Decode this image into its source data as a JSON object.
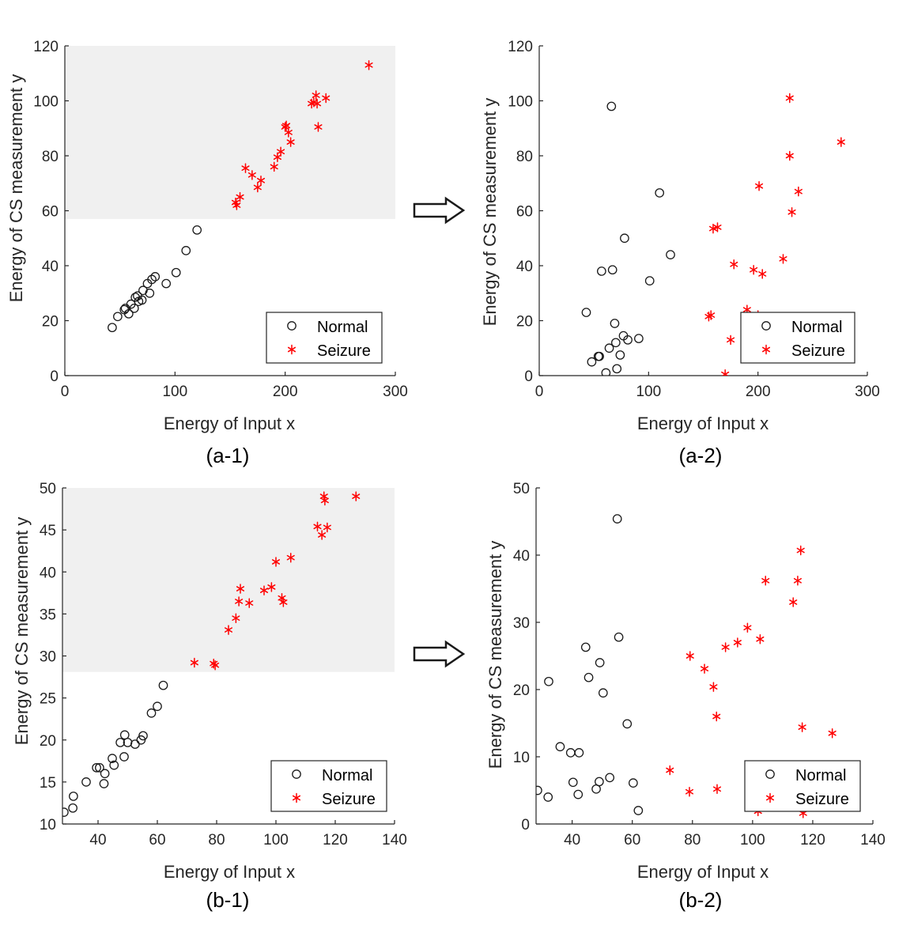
{
  "colors": {
    "normal": "#1a1a1a",
    "seizure": "#ff0000",
    "shade": "#f0f0f0",
    "axis": "#262626",
    "text": "#262626"
  },
  "legend_labels": {
    "normal": "Normal",
    "seizure": "Seizure"
  },
  "chart_data": [
    {
      "id": "a1",
      "type": "scatter",
      "panel_label": "(a-1)",
      "xlabel": "Energy of Input x",
      "ylabel": "Energy of CS measurement y",
      "xlim": [
        0,
        300
      ],
      "ylim": [
        0,
        120
      ],
      "xticks": [
        0,
        100,
        200,
        300
      ],
      "yticks": [
        0,
        20,
        40,
        60,
        80,
        100,
        120
      ],
      "shade": {
        "x": [
          0,
          300
        ],
        "y": [
          57,
          120
        ]
      },
      "legend_position": "bottom-right",
      "series": [
        {
          "name": "Normal",
          "marker": "circle",
          "points": [
            [
              43,
              17.5
            ],
            [
              48,
              21.5
            ],
            [
              54,
              24
            ],
            [
              55,
              24.5
            ],
            [
              58,
              22.5
            ],
            [
              60,
              26
            ],
            [
              63,
              24.5
            ],
            [
              64,
              28.5
            ],
            [
              66,
              29
            ],
            [
              67,
              27
            ],
            [
              70,
              27.5
            ],
            [
              71,
              31
            ],
            [
              75,
              33.5
            ],
            [
              77,
              30
            ],
            [
              79,
              35
            ],
            [
              82,
              36
            ],
            [
              92,
              33.5
            ],
            [
              101,
              37.5
            ],
            [
              110,
              45.5
            ],
            [
              120,
              53
            ]
          ]
        },
        {
          "name": "Seizure",
          "marker": "asterisk",
          "points": [
            [
              155,
              63
            ],
            [
              156,
              62
            ],
            [
              159,
              65
            ],
            [
              164,
              75.5
            ],
            [
              170,
              73
            ],
            [
              175,
              68.5
            ],
            [
              178,
              71
            ],
            [
              190,
              76
            ],
            [
              193,
              79.5
            ],
            [
              196,
              81.5
            ],
            [
              200,
              90.5
            ],
            [
              201,
              91
            ],
            [
              203,
              88.5
            ],
            [
              205,
              85
            ],
            [
              224,
              99
            ],
            [
              226,
              99.5
            ],
            [
              228,
              102
            ],
            [
              229,
              99
            ],
            [
              230,
              90.5
            ],
            [
              237,
              101
            ],
            [
              276,
              113
            ]
          ]
        }
      ]
    },
    {
      "id": "a2",
      "type": "scatter",
      "panel_label": "(a-2)",
      "xlabel": "Energy of Input x",
      "ylabel": "Energy of CS measurement y",
      "xlim": [
        0,
        300
      ],
      "ylim": [
        0,
        120
      ],
      "xticks": [
        0,
        100,
        200,
        300
      ],
      "yticks": [
        0,
        20,
        40,
        60,
        80,
        100,
        120
      ],
      "legend_position": "bottom-right",
      "series": [
        {
          "name": "Normal",
          "marker": "circle",
          "points": [
            [
              43,
              23
            ],
            [
              48,
              5
            ],
            [
              54,
              7
            ],
            [
              55,
              7
            ],
            [
              57,
              38
            ],
            [
              61,
              1
            ],
            [
              64,
              10
            ],
            [
              66,
              98
            ],
            [
              67,
              38.5
            ],
            [
              69,
              19
            ],
            [
              70,
              12
            ],
            [
              71,
              2.5
            ],
            [
              74,
              7.5
            ],
            [
              77,
              14.5
            ],
            [
              78,
              50
            ],
            [
              81,
              13
            ],
            [
              91,
              13.5
            ],
            [
              101,
              34.5
            ],
            [
              110,
              66.5
            ],
            [
              120,
              44
            ]
          ]
        },
        {
          "name": "Seizure",
          "marker": "asterisk",
          "points": [
            [
              155,
              21.5
            ],
            [
              157,
              22
            ],
            [
              159,
              53.5
            ],
            [
              163,
              54
            ],
            [
              170,
              0.5
            ],
            [
              175,
              13
            ],
            [
              178,
              40.5
            ],
            [
              190,
              24
            ],
            [
              196,
              38.5
            ],
            [
              200,
              22
            ],
            [
              201,
              69
            ],
            [
              204,
              37
            ],
            [
              223,
              42.5
            ],
            [
              229,
              101
            ],
            [
              229,
              80
            ],
            [
              231,
              59.5
            ],
            [
              237,
              67
            ],
            [
              276,
              85
            ]
          ]
        }
      ]
    },
    {
      "id": "b1",
      "type": "scatter",
      "panel_label": "(b-1)",
      "xlabel": "Energy of Input x",
      "ylabel": "Energy of CS measurement y",
      "xlim": [
        28,
        140
      ],
      "ylim": [
        10,
        50
      ],
      "xticks": [
        40,
        60,
        80,
        100,
        120,
        140
      ],
      "yticks": [
        10,
        15,
        20,
        25,
        30,
        35,
        40,
        45,
        50
      ],
      "shade": {
        "x": [
          28,
          140
        ],
        "y": [
          28.1,
          50
        ]
      },
      "legend_position": "bottom-right",
      "series": [
        {
          "name": "Normal",
          "marker": "circle",
          "points": [
            [
              28.5,
              11.4
            ],
            [
              31.5,
              11.9
            ],
            [
              31.7,
              13.3
            ],
            [
              36,
              15
            ],
            [
              39.5,
              16.7
            ],
            [
              40.5,
              16.7
            ],
            [
              42,
              14.8
            ],
            [
              42.3,
              16
            ],
            [
              44.8,
              17.8
            ],
            [
              45.4,
              17
            ],
            [
              47.5,
              19.7
            ],
            [
              48.8,
              18
            ],
            [
              49,
              20.6
            ],
            [
              50,
              19.7
            ],
            [
              52.5,
              19.5
            ],
            [
              54.5,
              20
            ],
            [
              55.2,
              20.5
            ],
            [
              58,
              23.2
            ],
            [
              60,
              24
            ],
            [
              62,
              26.5
            ]
          ]
        },
        {
          "name": "Seizure",
          "marker": "asterisk",
          "points": [
            [
              72.5,
              29.2
            ],
            [
              79,
              29.1
            ],
            [
              79.5,
              28.9
            ],
            [
              84,
              33.1
            ],
            [
              86.5,
              34.5
            ],
            [
              87.5,
              36.5
            ],
            [
              88,
              38
            ],
            [
              91,
              36.3
            ],
            [
              96,
              37.8
            ],
            [
              98.5,
              38.2
            ],
            [
              100,
              41.2
            ],
            [
              102,
              36.9
            ],
            [
              102.5,
              36.4
            ],
            [
              105,
              41.7
            ],
            [
              114,
              45.4
            ],
            [
              115.5,
              44.4
            ],
            [
              116.2,
              49
            ],
            [
              116.5,
              48.5
            ],
            [
              117.3,
              45.3
            ],
            [
              127,
              49
            ]
          ]
        }
      ]
    },
    {
      "id": "b2",
      "type": "scatter",
      "panel_label": "(b-2)",
      "xlabel": "Energy of Input x",
      "ylabel": "Energy of CS measurement y",
      "xlim": [
        28,
        140
      ],
      "ylim": [
        0,
        50
      ],
      "xticks": [
        40,
        60,
        80,
        100,
        120,
        140
      ],
      "yticks": [
        0,
        10,
        20,
        30,
        40,
        50
      ],
      "legend_position": "bottom-right",
      "series": [
        {
          "name": "Normal",
          "marker": "circle",
          "points": [
            [
              28.5,
              5
            ],
            [
              32,
              4
            ],
            [
              32.2,
              21.2
            ],
            [
              36,
              11.5
            ],
            [
              39.5,
              10.6
            ],
            [
              40.3,
              6.2
            ],
            [
              42,
              4.4
            ],
            [
              42.3,
              10.6
            ],
            [
              44.5,
              26.3
            ],
            [
              45.5,
              21.8
            ],
            [
              48,
              5.2
            ],
            [
              49,
              6.3
            ],
            [
              49.2,
              24
            ],
            [
              50.3,
              19.5
            ],
            [
              52.5,
              6.9
            ],
            [
              55,
              45.4
            ],
            [
              55.5,
              27.8
            ],
            [
              58.3,
              14.9
            ],
            [
              60.3,
              6.1
            ],
            [
              62,
              2
            ]
          ]
        },
        {
          "name": "Seizure",
          "marker": "asterisk",
          "points": [
            [
              72.5,
              8
            ],
            [
              79,
              4.8
            ],
            [
              79.2,
              25
            ],
            [
              84,
              23.1
            ],
            [
              87,
              20.4
            ],
            [
              88,
              16
            ],
            [
              88.2,
              5.2
            ],
            [
              91,
              26.3
            ],
            [
              95,
              27
            ],
            [
              98.3,
              29.2
            ],
            [
              101.8,
              1.9
            ],
            [
              102.5,
              27.5
            ],
            [
              104.3,
              36.2
            ],
            [
              113.5,
              33
            ],
            [
              115,
              36.2
            ],
            [
              116,
              40.7
            ],
            [
              116.5,
              14.4
            ],
            [
              116.8,
              1.6
            ],
            [
              126.5,
              13.5
            ]
          ]
        }
      ]
    }
  ]
}
